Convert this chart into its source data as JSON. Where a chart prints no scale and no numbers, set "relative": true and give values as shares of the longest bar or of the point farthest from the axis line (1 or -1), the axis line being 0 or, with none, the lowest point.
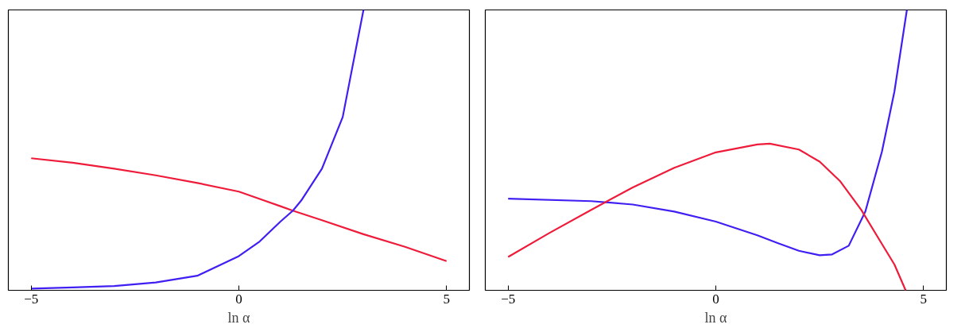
{
  "chart_data": [
    {
      "type": "line",
      "xlabel": "ln α",
      "relative": true,
      "xlim": [
        -5.55,
        5.55
      ],
      "xticks": [
        {
          "value": -5,
          "label": "−5"
        },
        0,
        5
      ],
      "tick_labels": "x",
      "grid": false,
      "series": [
        {
          "color": "#ee1c3a",
          "x": [
            -5,
            -4,
            -3,
            -2,
            -1,
            0,
            1,
            1.3,
            2,
            3,
            4,
            5
          ],
          "values": [
            0.471,
            0.455,
            0.434,
            0.41,
            0.383,
            0.352,
            0.3,
            0.284,
            0.25,
            0.2,
            0.155,
            0.104
          ]
        },
        {
          "color": "#3f1ff2",
          "x": [
            -5,
            -4,
            -3,
            -2,
            -1,
            0,
            0.5,
            1,
            1.3,
            1.5,
            2,
            2.5,
            3
          ],
          "values": [
            0.006,
            0.01,
            0.015,
            0.028,
            0.052,
            0.122,
            0.174,
            0.245,
            0.284,
            0.32,
            0.434,
            0.618,
            1.0
          ]
        }
      ]
    },
    {
      "type": "line",
      "xlabel": "ln α",
      "relative": true,
      "xlim": [
        -5.55,
        5.55
      ],
      "xticks": [
        {
          "value": -5,
          "label": "−5"
        },
        0,
        5
      ],
      "tick_labels": "x",
      "grid": false,
      "series": [
        {
          "color": "#3f1ff2",
          "x": [
            -5,
            -3,
            -2,
            -1,
            0,
            1,
            1.5,
            2,
            2.5,
            2.8,
            3.2,
            3.6,
            4,
            4.3,
            4.6
          ],
          "values": [
            0.327,
            0.318,
            0.306,
            0.281,
            0.245,
            0.196,
            0.168,
            0.141,
            0.125,
            0.128,
            0.159,
            0.281,
            0.495,
            0.709,
            1.0
          ]
        },
        {
          "color": "#ee1c3a",
          "x": [
            -5,
            -4,
            -3,
            -2,
            -1,
            0,
            1,
            1.3,
            2,
            2.5,
            3,
            3.5,
            4,
            4.3,
            4.57
          ],
          "values": [
            0.119,
            0.205,
            0.287,
            0.367,
            0.437,
            0.492,
            0.52,
            0.523,
            0.502,
            0.459,
            0.388,
            0.287,
            0.165,
            0.092,
            0.0
          ]
        }
      ]
    }
  ]
}
